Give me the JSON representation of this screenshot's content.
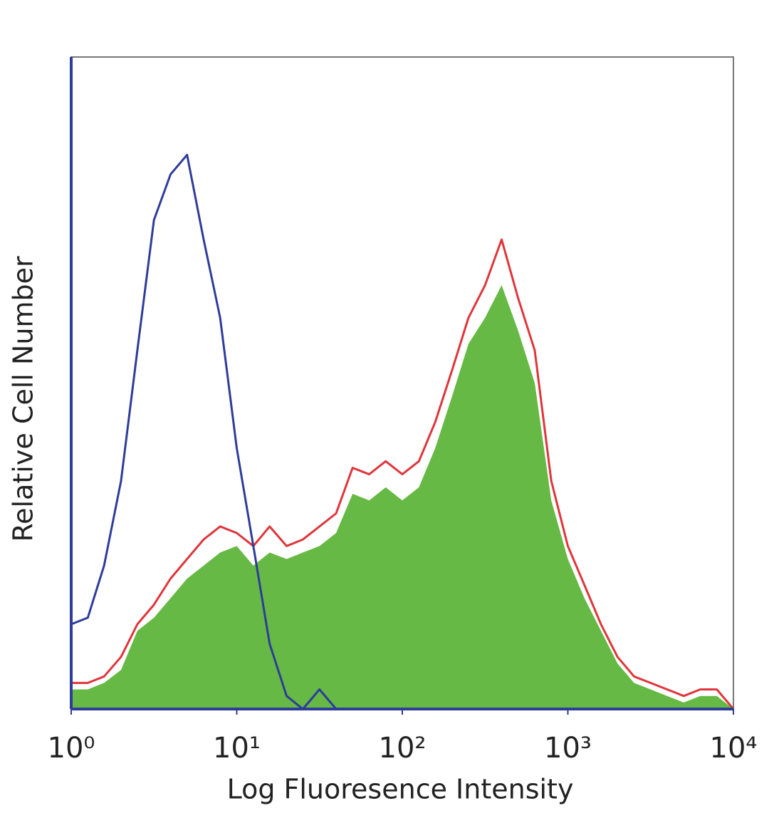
{
  "chart_data": {
    "type": "line",
    "xlabel": "Log Fluoresence Intensity",
    "ylabel": "Relative Cell Number",
    "xscale": "log",
    "xlim": [
      1,
      10000
    ],
    "ylim": [
      0,
      100
    ],
    "xticks": [
      {
        "value": 1,
        "label": "10⁰"
      },
      {
        "value": 10,
        "label": "10¹"
      },
      {
        "value": 100,
        "label": "10²"
      },
      {
        "value": 1000,
        "label": "10³"
      },
      {
        "value": 10000,
        "label": "10⁴"
      }
    ],
    "x": [
      1,
      1.26,
      1.58,
      2.0,
      2.51,
      3.16,
      3.98,
      5.01,
      6.31,
      7.94,
      10,
      12.6,
      15.8,
      20,
      25.1,
      31.6,
      39.8,
      50.1,
      63.1,
      79.4,
      100,
      126,
      158,
      200,
      251,
      316,
      398,
      501,
      631,
      794,
      1000,
      1259,
      1585,
      1995,
      2512,
      3162,
      3981,
      5012,
      6310,
      7943,
      10000
    ],
    "series": [
      {
        "color": "#e0353a",
        "fill": false,
        "values": [
          4,
          4,
          5,
          8,
          13,
          16,
          20,
          23,
          26,
          28,
          27,
          25,
          28,
          25,
          26,
          28,
          30,
          37,
          36,
          38,
          36,
          38,
          44,
          52,
          60,
          65,
          72,
          63,
          55,
          35,
          25,
          19,
          13,
          8,
          5,
          4,
          3,
          2,
          3,
          3,
          0
        ]
      },
      {
        "color": "#66b944",
        "fill": true,
        "values": [
          3,
          3,
          4,
          6,
          12,
          14,
          17,
          20,
          22,
          24,
          25,
          22,
          24,
          23,
          24,
          25,
          27,
          33,
          32,
          34,
          32,
          34,
          40,
          48,
          56,
          60,
          65,
          58,
          50,
          32,
          23,
          17,
          12,
          7,
          4,
          3,
          2,
          1,
          2,
          2,
          0
        ]
      },
      {
        "color": "#2e3c9a",
        "fill": false,
        "values": [
          13,
          14,
          22,
          35,
          55,
          75,
          82,
          85,
          72,
          60,
          40,
          25,
          10,
          2,
          0,
          3,
          0,
          0,
          0,
          0,
          0,
          0,
          0,
          0,
          0,
          0,
          0,
          0,
          0,
          0,
          0,
          0,
          0,
          0,
          0,
          0,
          0,
          0,
          0,
          0,
          0
        ]
      }
    ]
  }
}
